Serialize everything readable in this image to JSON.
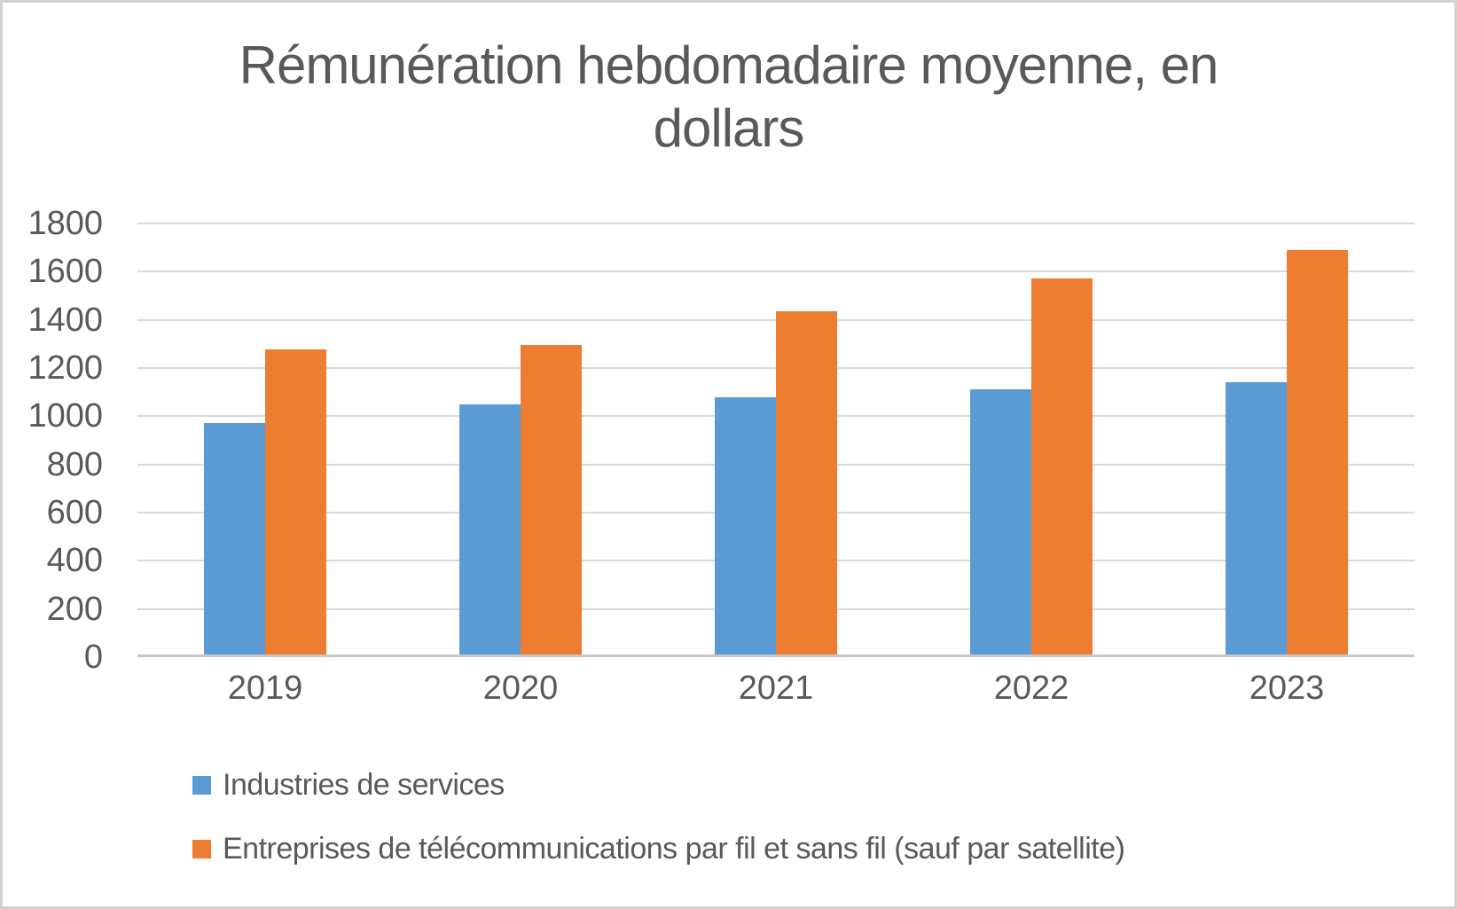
{
  "window": {
    "background": "#FFFFFF",
    "border_color": "#D2D2D2"
  },
  "chart_data": {
    "type": "bar",
    "title": "Rémunération hebdomadaire moyenne, en dollars",
    "title_lines": [
      "Rémunération hebdomadaire moyenne, en",
      "dollars"
    ],
    "categories": [
      "2019",
      "2020",
      "2021",
      "2022",
      "2023"
    ],
    "series": [
      {
        "name": "Industries de services",
        "color": "#5B9BD5",
        "values": [
          970,
          1048,
          1079,
          1111,
          1143
        ]
      },
      {
        "name": "Entreprises de télécommunications par fil et sans fil (sauf par satellite)",
        "color": "#ED7D31",
        "values": [
          1278,
          1296,
          1437,
          1572,
          1690
        ]
      }
    ],
    "ylim": [
      0,
      1800
    ],
    "ytick_step": 200,
    "ytick_labels": [
      "0",
      "200",
      "400",
      "600",
      "800",
      "1000",
      "1200",
      "1400",
      "1600",
      "1800"
    ],
    "xlabel": "",
    "ylabel": "",
    "grid": true,
    "legend_position": "bottom-left",
    "colors": {
      "gridline": "#D9D9D9",
      "axis_line": "#C8C8C8",
      "text": "#595959"
    }
  }
}
